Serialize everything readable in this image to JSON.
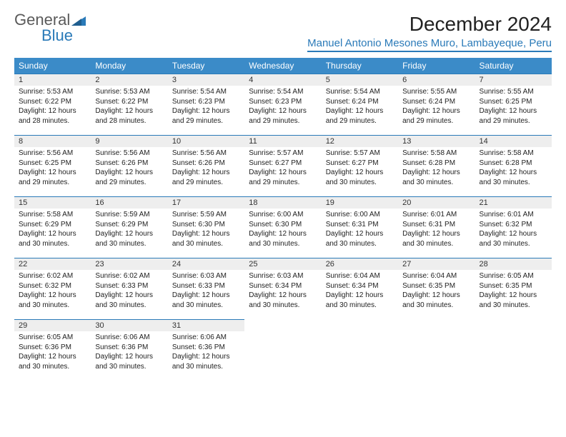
{
  "brand": {
    "line1": "General",
    "line2": "Blue"
  },
  "title": "December 2024",
  "location": "Manuel Antonio Mesones Muro, Lambayeque, Peru",
  "colors": {
    "header_bg": "#3b8bc8",
    "accent": "#2a7ab8",
    "daynum_bg": "#eeeeee",
    "text": "#222222",
    "page_bg": "#ffffff"
  },
  "weekdays": [
    "Sunday",
    "Monday",
    "Tuesday",
    "Wednesday",
    "Thursday",
    "Friday",
    "Saturday"
  ],
  "days": [
    {
      "n": "1",
      "sr": "5:53 AM",
      "ss": "6:22 PM",
      "dl": "12 hours and 28 minutes."
    },
    {
      "n": "2",
      "sr": "5:53 AM",
      "ss": "6:22 PM",
      "dl": "12 hours and 28 minutes."
    },
    {
      "n": "3",
      "sr": "5:54 AM",
      "ss": "6:23 PM",
      "dl": "12 hours and 29 minutes."
    },
    {
      "n": "4",
      "sr": "5:54 AM",
      "ss": "6:23 PM",
      "dl": "12 hours and 29 minutes."
    },
    {
      "n": "5",
      "sr": "5:54 AM",
      "ss": "6:24 PM",
      "dl": "12 hours and 29 minutes."
    },
    {
      "n": "6",
      "sr": "5:55 AM",
      "ss": "6:24 PM",
      "dl": "12 hours and 29 minutes."
    },
    {
      "n": "7",
      "sr": "5:55 AM",
      "ss": "6:25 PM",
      "dl": "12 hours and 29 minutes."
    },
    {
      "n": "8",
      "sr": "5:56 AM",
      "ss": "6:25 PM",
      "dl": "12 hours and 29 minutes."
    },
    {
      "n": "9",
      "sr": "5:56 AM",
      "ss": "6:26 PM",
      "dl": "12 hours and 29 minutes."
    },
    {
      "n": "10",
      "sr": "5:56 AM",
      "ss": "6:26 PM",
      "dl": "12 hours and 29 minutes."
    },
    {
      "n": "11",
      "sr": "5:57 AM",
      "ss": "6:27 PM",
      "dl": "12 hours and 29 minutes."
    },
    {
      "n": "12",
      "sr": "5:57 AM",
      "ss": "6:27 PM",
      "dl": "12 hours and 30 minutes."
    },
    {
      "n": "13",
      "sr": "5:58 AM",
      "ss": "6:28 PM",
      "dl": "12 hours and 30 minutes."
    },
    {
      "n": "14",
      "sr": "5:58 AM",
      "ss": "6:28 PM",
      "dl": "12 hours and 30 minutes."
    },
    {
      "n": "15",
      "sr": "5:58 AM",
      "ss": "6:29 PM",
      "dl": "12 hours and 30 minutes."
    },
    {
      "n": "16",
      "sr": "5:59 AM",
      "ss": "6:29 PM",
      "dl": "12 hours and 30 minutes."
    },
    {
      "n": "17",
      "sr": "5:59 AM",
      "ss": "6:30 PM",
      "dl": "12 hours and 30 minutes."
    },
    {
      "n": "18",
      "sr": "6:00 AM",
      "ss": "6:30 PM",
      "dl": "12 hours and 30 minutes."
    },
    {
      "n": "19",
      "sr": "6:00 AM",
      "ss": "6:31 PM",
      "dl": "12 hours and 30 minutes."
    },
    {
      "n": "20",
      "sr": "6:01 AM",
      "ss": "6:31 PM",
      "dl": "12 hours and 30 minutes."
    },
    {
      "n": "21",
      "sr": "6:01 AM",
      "ss": "6:32 PM",
      "dl": "12 hours and 30 minutes."
    },
    {
      "n": "22",
      "sr": "6:02 AM",
      "ss": "6:32 PM",
      "dl": "12 hours and 30 minutes."
    },
    {
      "n": "23",
      "sr": "6:02 AM",
      "ss": "6:33 PM",
      "dl": "12 hours and 30 minutes."
    },
    {
      "n": "24",
      "sr": "6:03 AM",
      "ss": "6:33 PM",
      "dl": "12 hours and 30 minutes."
    },
    {
      "n": "25",
      "sr": "6:03 AM",
      "ss": "6:34 PM",
      "dl": "12 hours and 30 minutes."
    },
    {
      "n": "26",
      "sr": "6:04 AM",
      "ss": "6:34 PM",
      "dl": "12 hours and 30 minutes."
    },
    {
      "n": "27",
      "sr": "6:04 AM",
      "ss": "6:35 PM",
      "dl": "12 hours and 30 minutes."
    },
    {
      "n": "28",
      "sr": "6:05 AM",
      "ss": "6:35 PM",
      "dl": "12 hours and 30 minutes."
    },
    {
      "n": "29",
      "sr": "6:05 AM",
      "ss": "6:36 PM",
      "dl": "12 hours and 30 minutes."
    },
    {
      "n": "30",
      "sr": "6:06 AM",
      "ss": "6:36 PM",
      "dl": "12 hours and 30 minutes."
    },
    {
      "n": "31",
      "sr": "6:06 AM",
      "ss": "6:36 PM",
      "dl": "12 hours and 30 minutes."
    }
  ],
  "labels": {
    "sunrise": "Sunrise: ",
    "sunset": "Sunset: ",
    "daylight": "Daylight: "
  },
  "layout": {
    "start_weekday": 0,
    "cols": 7
  }
}
